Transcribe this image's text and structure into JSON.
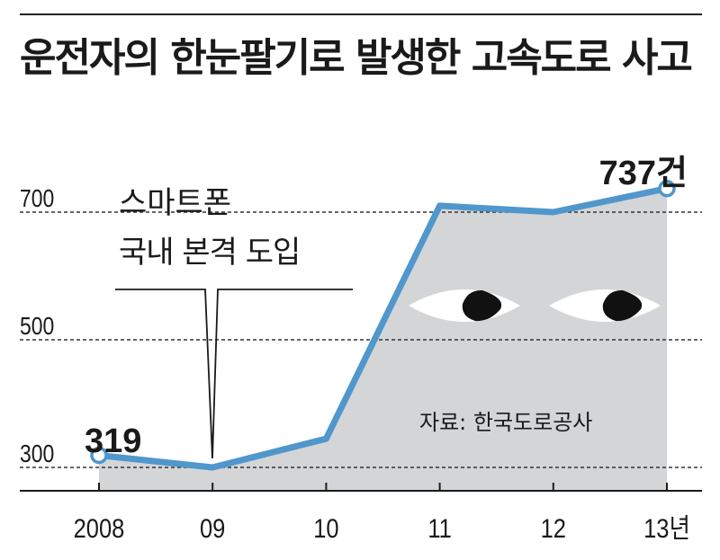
{
  "title": "운전자의 한눈팔기로 발생한 고속도로 사고",
  "source": "자료: 한국도로공사",
  "annotation": {
    "line1": "스마트폰",
    "line2": "국내 본격 도입"
  },
  "chart_data": {
    "type": "line",
    "title": "운전자의 한눈팔기로 발생한 고속도로 사고",
    "categories": [
      "2008",
      "09",
      "10",
      "11",
      "12",
      "13년"
    ],
    "series": [
      {
        "values": [
          319,
          300,
          345,
          710,
          700,
          737
        ]
      }
    ],
    "data_labels": {
      "first": "319",
      "last": "737건"
    },
    "ylim": [
      280,
      745
    ],
    "yticks": [
      {
        "value": 300,
        "label": "300"
      },
      {
        "value": 500,
        "label": "500"
      },
      {
        "value": 700,
        "label": "700"
      }
    ],
    "xlabel": "",
    "ylabel": "",
    "grid": "dashed horizontal",
    "colors": {
      "line": "#4f97cc",
      "area": "#d4d5d7",
      "grid": "#333333",
      "axis": "#1a1a1a"
    }
  }
}
